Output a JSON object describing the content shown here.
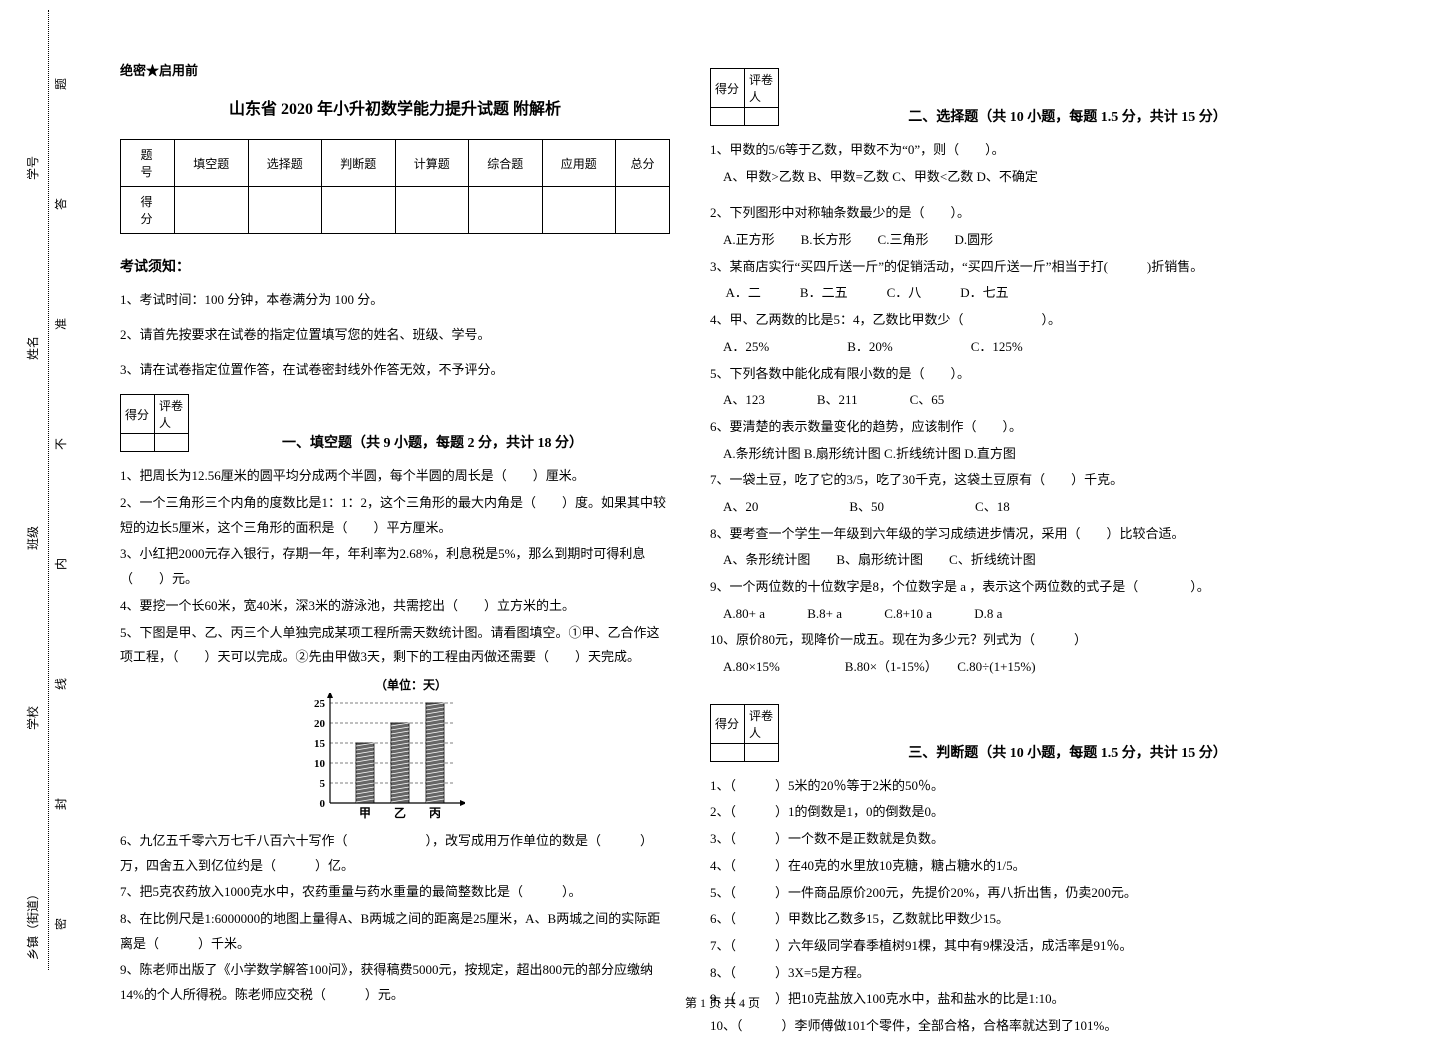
{
  "binding": {
    "xiangzhen": "乡镇（街道）",
    "xuexiao": "学校",
    "banji": "班级",
    "xingming": "姓名",
    "xuehao": "学号",
    "mi": "密",
    "feng": "封",
    "xian": "线",
    "nei": "内",
    "bu": "不",
    "zhun": "准",
    "da": "答",
    "ti": "题"
  },
  "secret": "绝密★启用前",
  "title": "山东省 2020 年小升初数学能力提升试题 附解析",
  "scoreTable": {
    "row1": [
      "题号",
      "填空题",
      "选择题",
      "判断题",
      "计算题",
      "综合题",
      "应用题",
      "总分"
    ],
    "row2Label": "得分"
  },
  "noticeTitle": "考试须知：",
  "notices": [
    "1、考试时间：100 分钟，本卷满分为 100 分。",
    "2、请首先按要求在试卷的指定位置填写您的姓名、班级、学号。",
    "3、请在试卷指定位置作答，在试卷密封线外作答无效，不予评分。"
  ],
  "scorebox": {
    "score": "得分",
    "grader": "评卷人"
  },
  "sec1Title": "一、填空题（共 9 小题，每题 2 分，共计 18 分）",
  "sec1": [
    "1、把周长为12.56厘米的圆平均分成两个半圆，每个半圆的周长是（　　）厘米。",
    "2、一个三角形三个内角的度数比是1：1：2，这个三角形的最大内角是（　　）度。如果其中较短的边长5厘米，这个三角形的面积是（　　）平方厘米。",
    "3、小红把2000元存入银行，存期一年，年利率为2.68%，利息税是5%，那么到期时可得利息（　　）元。",
    "4、要挖一个长60米，宽40米，深3米的游泳池，共需挖出（　　）立方米的土。",
    "5、下图是甲、乙、丙三个人单独完成某项工程所需天数统计图。请看图填空。①甲、乙合作这项工程，（　　）天可以完成。②先由甲做3天，剩下的工程由丙做还需要（　　）天完成。"
  ],
  "chart": {
    "unitLabel": "（单位：天）",
    "yticks": [
      25,
      20,
      15,
      10,
      5,
      0
    ],
    "bars": [
      {
        "label": "甲",
        "value": 15,
        "x": 35
      },
      {
        "label": "乙",
        "value": 20,
        "x": 70
      },
      {
        "label": "丙",
        "value": 25,
        "x": 105
      }
    ],
    "width": 160,
    "height": 130,
    "plotTop": 10,
    "plotBottom": 110,
    "plotLeft": 25,
    "axisColor": "#000000",
    "gridColor": "#000000",
    "barFill": "#666666",
    "barWidth": 18
  },
  "sec1b": [
    "6、九亿五千零六万七千八百六十写作（　　　　　　），改写成用万作单位的数是（　　　）万，四舍五入到亿位约是（　　　）亿。",
    "7、把5克农药放入1000克水中，农药重量与药水重量的最简整数比是（　　　）。",
    "8、在比例尺是1:6000000的地图上量得A、B两城之间的距离是25厘米，A、B两城之间的实际距离是（　　　）千米。",
    "9、陈老师出版了《小学数学解答100问》，获得稿费5000元，按规定，超出800元的部分应缴纳14%的个人所得税。陈老师应交税（　　　）元。"
  ],
  "sec2Title": "二、选择题（共 10 小题，每题 1.5 分，共计 15 分）",
  "sec2": [
    "1、甲数的5/6等于乙数，甲数不为“0”，则（　　）。",
    "　A、甲数>乙数 B、甲数=乙数  C、甲数<乙数  D、不确定",
    "2、下列图形中对称轴条数最少的是（　　）。",
    "　A.正方形　　B.长方形　　C.三角形　　D.圆形",
    "3、某商店实行“买四斤送一斤”的促销活动，“买四斤送一斤”相当于打(　　　)折销售。",
    "　 A．二　　　B．二五　　　C．八　　　D．七五",
    "4、甲、乙两数的比是5：4，乙数比甲数少（　　　　　　）。",
    "　A．25%　　　　　　B．20%　　　　　　C．125%",
    "5、下列各数中能化成有限小数的是（　　）。",
    "　A、123　　　　B、211　　　　C、65",
    "6、要清楚的表示数量变化的趋势，应该制作（　　）。",
    "　A.条形统计图 B.扇形统计图 C.折线统计图 D.直方图",
    "7、一袋土豆，吃了它的3/5，吃了30千克，这袋土豆原有（　　）千克。",
    "　A、20　　　　　　　B、50　　　　　　　C、18",
    "8、要考查一个学生一年级到六年级的学习成绩进步情况，采用（　　）比较合适。",
    "　A、条形统计图　　B、扇形统计图　　C、折线统计图",
    "9、一个两位数的十位数字是8，个位数字是 a ，表示这个两位数的式子是（　　　　）。",
    "　A.80+ a 　　　B.8+ a 　　　C.8+10 a 　　　D.8 a",
    "10、原价80元，现降价一成五。现在为多少元？列式为（　　　）",
    "　A.80×15%　　　　　B.80×（1-15%）　　C.80÷(1+15%)"
  ],
  "sec3Title": "三、判断题（共 10 小题，每题 1.5 分，共计 15 分）",
  "sec3": [
    "1、（　　　）5米的20％等于2米的50％。",
    "2、（　　　）1的倒数是1，0的倒数是0。",
    "3、（　　　）一个数不是正数就是负数。",
    "4、（　　　）在40克的水里放10克糖，糖占糖水的1/5。",
    "5、（　　　）一件商品原价200元，先提价20%，再八折出售，仍卖200元。",
    "6、（　　　）甲数比乙数多15，乙数就比甲数少15。",
    "7、（　　　）六年级同学春季植树91棵，其中有9棵没活，成活率是91％。",
    "8、（　　　）3X=5是方程。",
    "9、（　　　）把10克盐放入100克水中，盐和盐水的比是1:10。",
    "10、（　　　）李师傅做101个零件，全部合格，合格率就达到了101%。"
  ],
  "footer": "第 1 页 共 4 页"
}
